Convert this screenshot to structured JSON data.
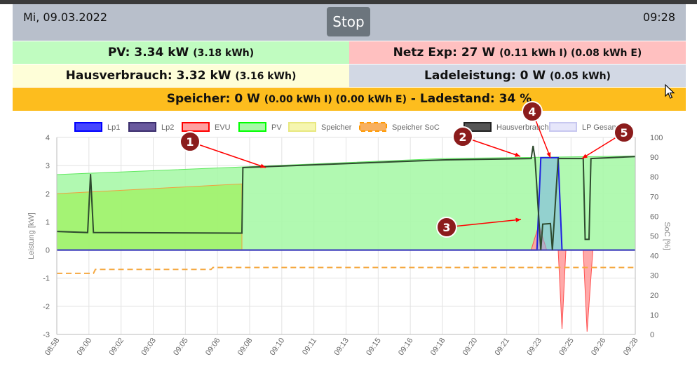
{
  "header": {
    "date": "Mi, 09.03.2022",
    "time": "09:28",
    "stop_label": "Stop"
  },
  "status": {
    "pv_main": "PV: 3.34 kW ",
    "pv_energy": "(3.18 kWh)",
    "netz_main": "Netz Exp: 27 W ",
    "netz_energy": "(0.11 kWh I) (0.08 kWh E)",
    "haus_main": "Hausverbrauch: 3.32 kW ",
    "haus_energy": "(3.16 kWh)",
    "lade_main": "Ladeleistung: 0 W ",
    "lade_energy": "(0.05 kWh)",
    "speicher_main": "Speicher: 0 W ",
    "speicher_energy": "(0.00 kWh I) (0.00 kWh E)",
    "speicher_soc": " - Ladestand: 34 %"
  },
  "colors": {
    "header_bg": "#b8bfcb",
    "pv_bg": "#c0fcc0",
    "netz_bg": "#ffc0c0",
    "haus_bg": "#fefed8",
    "lade_bg": "#d2d8e4",
    "speicher_bg": "#fdbd1e",
    "marker": "#8b1c1c",
    "arrow": "#ff0000"
  },
  "annotations": [
    "1",
    "2",
    "3",
    "4",
    "5"
  ],
  "chart_data": {
    "type": "line",
    "ylabel": "Leistung [kW]",
    "y2label": "SoC [%]",
    "ylim": [
      -3,
      4
    ],
    "y2lim": [
      0,
      100
    ],
    "yticks": [
      "4",
      "3",
      "2",
      "1",
      "0",
      "-1",
      "-2",
      "-3"
    ],
    "y2ticks": [
      "100",
      "90",
      "80",
      "70",
      "60",
      "50",
      "40",
      "30",
      "20",
      "10",
      "0"
    ],
    "xticks": [
      "08:58",
      "09:00",
      "09:02",
      "09:03",
      "09:05",
      "09:06",
      "09:08",
      "09:10",
      "09:11",
      "09:13",
      "09:15",
      "09:16",
      "09:18",
      "09:20",
      "09:21",
      "09:23",
      "09:25",
      "09:26",
      "09:28"
    ],
    "grid": true,
    "legend_position": "top",
    "legend": [
      {
        "name": "Lp1",
        "color": "#0000ff",
        "fill": "#4646ff"
      },
      {
        "name": "Lp2",
        "color": "#3c2f6e",
        "fill": "#6a5a9e"
      },
      {
        "name": "EVU",
        "color": "#ff0000",
        "fill": "#ffa0a0"
      },
      {
        "name": "PV",
        "color": "#00ff00",
        "fill": "#a8f8a8"
      },
      {
        "name": "Speicher",
        "color": "#e8e880",
        "fill": "#f6f6b0"
      },
      {
        "name": "Speicher SoC",
        "color": "#ff9900",
        "fill": "#f8b060"
      },
      {
        "name": "Hausverbrauch",
        "color": "#222222",
        "fill": "#555555"
      },
      {
        "name": "LP Gesamt",
        "color": "#c8c8f0",
        "fill": "#e6e6fa"
      }
    ],
    "series": [
      {
        "name": "PV",
        "x": [
          0,
          9.6,
          9.6,
          20,
          30
        ],
        "y": [
          2.68,
          2.95,
          2.95,
          3.25,
          3.34
        ]
      },
      {
        "name": "Speicher",
        "x": [
          0,
          9.6,
          9.6
        ],
        "y": [
          2.0,
          2.35,
          0
        ]
      },
      {
        "name": "Hausverbrauch",
        "x": [
          0,
          1.6,
          1.75,
          1.9,
          9.6,
          9.65,
          20,
          24.6,
          24.7,
          24.8,
          25.1,
          25.2,
          25.6,
          25.7,
          26.0,
          27.3,
          27.4,
          27.6,
          27.7,
          30
        ],
        "y": [
          0.66,
          0.62,
          2.7,
          0.62,
          0.6,
          2.93,
          3.2,
          3.25,
          3.7,
          3.25,
          0,
          0.92,
          0.94,
          0,
          3.25,
          3.25,
          0.38,
          0.38,
          3.25,
          3.32
        ]
      },
      {
        "name": "Lp1",
        "x": [
          0,
          24.9,
          25.1,
          26.0,
          26.2,
          30
        ],
        "y": [
          0,
          0,
          3.28,
          3.28,
          0,
          0
        ]
      },
      {
        "name": "EVU",
        "x": [
          0,
          24.6,
          25.0,
          25.4,
          25.7,
          26.0,
          26.2,
          26.4,
          27.0,
          27.3,
          27.5,
          27.8,
          30
        ],
        "y": [
          0,
          0,
          0.9,
          0,
          0,
          0,
          -2.8,
          0,
          0,
          0,
          -2.9,
          0,
          0
        ]
      },
      {
        "name": "Speicher SoC",
        "x": [
          0,
          1.9,
          2.0,
          8.0,
          8.1,
          30
        ],
        "y": [
          31,
          31,
          33,
          33,
          34,
          34
        ]
      }
    ]
  }
}
